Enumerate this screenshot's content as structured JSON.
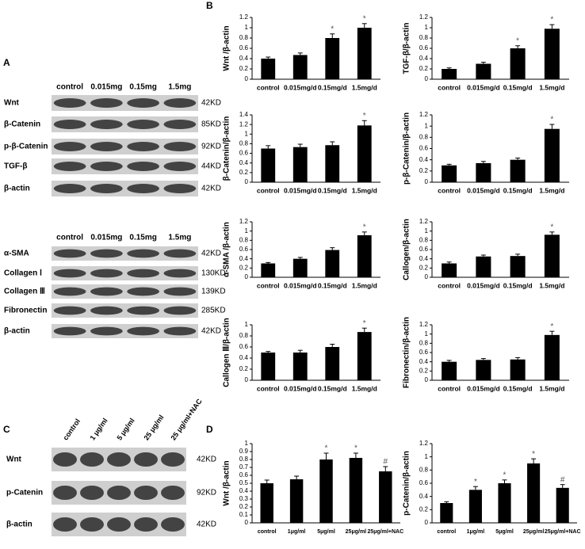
{
  "panels": [
    "A",
    "B",
    "C",
    "D"
  ],
  "blots": [
    {
      "headers": [
        "control",
        "0.015mg",
        "0.15mg",
        "1.5mg"
      ],
      "rows": [
        {
          "label": "Wnt",
          "kd": "42KD"
        },
        {
          "label": "β-Catenin",
          "kd": "85KD"
        },
        {
          "label": "p-β-Catenin",
          "kd": "92KD"
        },
        {
          "label": "TGF-β",
          "kd": "44KD"
        },
        {
          "label": "β-actin",
          "kd": "42KD"
        }
      ]
    },
    {
      "headers": [
        "control",
        "0.015mg",
        "0.15mg",
        "1.5mg"
      ],
      "rows": [
        {
          "label": "α-SMA",
          "kd": "42KD"
        },
        {
          "label": "Collagen Ⅰ",
          "kd": "130KD"
        },
        {
          "label": "Collagen Ⅲ",
          "kd": "139KD"
        },
        {
          "label": "Fibronectin",
          "kd": "285KD"
        },
        {
          "label": "β-actin",
          "kd": "42KD"
        }
      ]
    },
    {
      "headers": [
        "control",
        "1 μg/ml",
        "5 μg/ml",
        "25 μg/ml",
        "25 μg/ml+NAC"
      ],
      "rows": [
        {
          "label": "Wnt",
          "kd": "42KD"
        },
        {
          "label": "p-Catenin",
          "kd": "92KD"
        },
        {
          "label": "β-actin",
          "kd": "42KD"
        }
      ]
    }
  ],
  "chart_data": [
    {
      "type": "bar",
      "ylabel": "Wnt /β-actin",
      "categories": [
        "control",
        "0.015mg/d",
        "0.15mg/d",
        "1.5mg/d"
      ],
      "values": [
        0.4,
        0.47,
        0.8,
        1.0
      ],
      "errors": [
        0.03,
        0.04,
        0.08,
        0.08
      ],
      "annotations": [
        null,
        null,
        "*",
        "*"
      ],
      "color": "#000000",
      "ylim": [
        0,
        1.2
      ],
      "yticks": [
        0,
        0.2,
        0.4,
        0.6,
        0.8,
        1,
        1.2
      ]
    },
    {
      "type": "bar",
      "ylabel": "TGF-β/β-actin",
      "categories": [
        "control",
        "0.015mg/d",
        "0.15mg/d",
        "1.5mg/d"
      ],
      "values": [
        0.2,
        0.3,
        0.6,
        0.98
      ],
      "errors": [
        0.02,
        0.03,
        0.05,
        0.08
      ],
      "annotations": [
        null,
        null,
        "*",
        "*"
      ],
      "color": "#000000",
      "ylim": [
        0,
        1.2
      ],
      "yticks": [
        0,
        0.2,
        0.4,
        0.6,
        0.8,
        1,
        1.2
      ]
    },
    {
      "type": "bar",
      "ylabel": "β-Catenin/β-actin",
      "categories": [
        "control",
        "0.015mg/d",
        "0.15mg/d",
        "1.5mg/d"
      ],
      "values": [
        0.7,
        0.73,
        0.77,
        1.18
      ],
      "errors": [
        0.06,
        0.06,
        0.07,
        0.1
      ],
      "annotations": [
        null,
        null,
        null,
        "*"
      ],
      "color": "#000000",
      "ylim": [
        0,
        1.4
      ],
      "yticks": [
        0,
        0.2,
        0.4,
        0.6,
        0.8,
        1,
        1.2,
        1.4
      ]
    },
    {
      "type": "bar",
      "ylabel": "p-β-Catenin/β-actin",
      "categories": [
        "control",
        "0.015mg/d",
        "0.15mg/d",
        "1.5mg/d"
      ],
      "values": [
        0.3,
        0.34,
        0.4,
        0.95
      ],
      "errors": [
        0.02,
        0.03,
        0.03,
        0.08
      ],
      "annotations": [
        null,
        null,
        null,
        "*"
      ],
      "color": "#000000",
      "ylim": [
        0,
        1.2
      ],
      "yticks": [
        0,
        0.2,
        0.4,
        0.6,
        0.8,
        1,
        1.2
      ]
    },
    {
      "type": "bar",
      "ylabel": "α-SMA /β-actin",
      "categories": [
        "control",
        "0.015mg/d",
        "0.15mg/d",
        "1.5mg/d"
      ],
      "values": [
        0.3,
        0.4,
        0.59,
        0.91
      ],
      "errors": [
        0.02,
        0.03,
        0.05,
        0.07
      ],
      "annotations": [
        null,
        null,
        null,
        "*"
      ],
      "color": "#000000",
      "ylim": [
        0,
        1.2
      ],
      "yticks": [
        0,
        0.2,
        0.4,
        0.6,
        0.8,
        1,
        1.2
      ]
    },
    {
      "type": "bar",
      "ylabel": "Callogen/β-actin",
      "categories": [
        "control",
        "0.015mg/d",
        "0.15mg/d",
        "1.5mg/d"
      ],
      "values": [
        0.3,
        0.45,
        0.46,
        0.92
      ],
      "errors": [
        0.03,
        0.03,
        0.04,
        0.06
      ],
      "annotations": [
        null,
        null,
        null,
        "*"
      ],
      "color": "#000000",
      "ylim": [
        0,
        1.2
      ],
      "yticks": [
        0,
        0.2,
        0.4,
        0.6,
        0.8,
        1,
        1.2
      ]
    },
    {
      "type": "bar",
      "ylabel": "Callogen Ⅲ/β-actin",
      "categories": [
        "control",
        "0.015mg/d",
        "0.15mg/d",
        "1.5mg/d"
      ],
      "values": [
        0.5,
        0.5,
        0.6,
        0.87
      ],
      "errors": [
        0.02,
        0.04,
        0.05,
        0.07
      ],
      "annotations": [
        null,
        null,
        null,
        "*"
      ],
      "color": "#000000",
      "ylim": [
        0,
        1
      ],
      "yticks": [
        0,
        0.2,
        0.4,
        0.6,
        0.8,
        1
      ]
    },
    {
      "type": "bar",
      "ylabel": "Fibronectin/β-actin",
      "categories": [
        "control",
        "0.015mg/d",
        "0.15mg/d",
        "1.5mg/d"
      ],
      "values": [
        0.4,
        0.44,
        0.45,
        0.98
      ],
      "errors": [
        0.03,
        0.03,
        0.04,
        0.08
      ],
      "annotations": [
        null,
        null,
        null,
        "*"
      ],
      "color": "#000000",
      "ylim": [
        0,
        1.2
      ],
      "yticks": [
        0,
        0.2,
        0.4,
        0.6,
        0.8,
        1,
        1.2
      ]
    },
    {
      "type": "bar",
      "ylabel": "Wnt /β-actin",
      "categories": [
        "control",
        "1μg/ml",
        "5μg/ml",
        "25μg/ml",
        "25μg/ml+NAC"
      ],
      "values": [
        0.5,
        0.55,
        0.8,
        0.82,
        0.65
      ],
      "errors": [
        0.04,
        0.04,
        0.08,
        0.06,
        0.06
      ],
      "annotations": [
        null,
        null,
        "*",
        "*",
        "#"
      ],
      "color": "#000000",
      "ylim": [
        0,
        1
      ],
      "yticks": [
        0,
        0.1,
        0.2,
        0.3,
        0.4,
        0.5,
        0.6,
        0.7,
        0.8,
        0.9,
        1
      ]
    },
    {
      "type": "bar",
      "ylabel": "p-Catenin/β-actin",
      "categories": [
        "control",
        "1μg/ml",
        "5μg/ml",
        "25μg/ml",
        "25μg/ml+NAC"
      ],
      "values": [
        0.3,
        0.5,
        0.6,
        0.9,
        0.53
      ],
      "errors": [
        0.02,
        0.05,
        0.05,
        0.07,
        0.05
      ],
      "annotations": [
        null,
        "*",
        "*",
        "*",
        "#"
      ],
      "color": "#000000",
      "ylim": [
        0,
        1.2
      ],
      "yticks": [
        0,
        0.2,
        0.4,
        0.6,
        0.8,
        1,
        1.2
      ]
    }
  ]
}
